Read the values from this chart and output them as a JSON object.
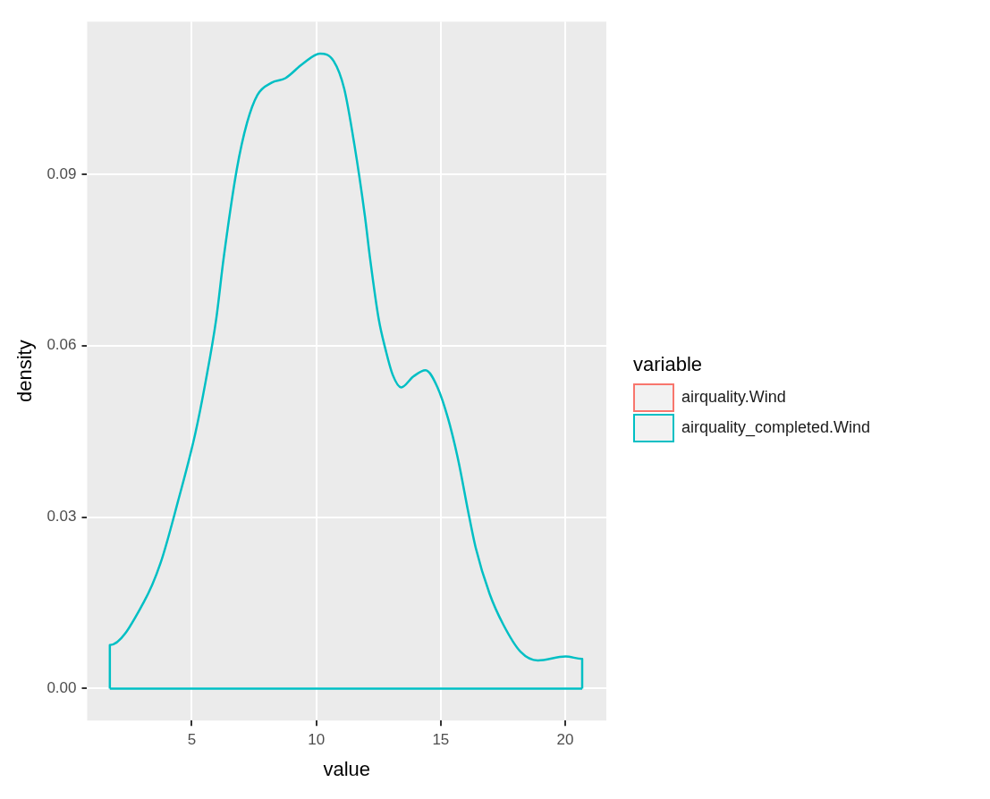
{
  "chart_data": {
    "type": "line",
    "xlabel": "value",
    "ylabel": "density",
    "legend_title": "variable",
    "legend": "right",
    "grid": true,
    "marker": "none",
    "line_style": "solid",
    "xlim": [
      0.8,
      21.65
    ],
    "xticks": [
      5,
      10,
      15,
      20
    ],
    "ylim": [
      -0.0056,
      0.1167
    ],
    "yticks": [
      {
        "value": 0,
        "label": "0.00"
      },
      {
        "value": 0.03,
        "label": "0.03"
      },
      {
        "value": 0.06,
        "label": "0.06"
      },
      {
        "value": 0.09,
        "label": "0.09"
      }
    ],
    "x": [
      1.71,
      1.71,
      3.06,
      3.75,
      4.45,
      5.14,
      5.56,
      5.98,
      6.28,
      6.81,
      7.22,
      7.64,
      8.2,
      8.76,
      9.45,
      10.15,
      10.7,
      11.12,
      11.53,
      11.95,
      12.16,
      12.51,
      12.79,
      13.07,
      13.41,
      13.9,
      14.39,
      14.87,
      15.29,
      15.71,
      16.1,
      16.4,
      16.96,
      17.51,
      18.21,
      18.9,
      20.01,
      20.68,
      20.68
    ],
    "series": [
      {
        "name": "airquality.Wind",
        "color": "#f8766d",
        "values": [
          null,
          null,
          null,
          null,
          null,
          null,
          null,
          null,
          null,
          null,
          null,
          null,
          null,
          null,
          null,
          null,
          null,
          null,
          null,
          null,
          null,
          null,
          null,
          null,
          null,
          null,
          null,
          null,
          null,
          null,
          null,
          null,
          null,
          null,
          null,
          null,
          null,
          null,
          null
        ]
      },
      {
        "name": "airquality_completed.Wind",
        "color": "#00bfc4",
        "values": [
          0,
          0.0076,
          0.015,
          0.022,
          0.0328,
          0.0446,
          0.0538,
          0.0646,
          0.0753,
          0.0909,
          0.099,
          0.1039,
          0.106,
          0.1068,
          0.1093,
          0.1111,
          0.1098,
          0.105,
          0.0952,
          0.0828,
          0.0753,
          0.0646,
          0.0592,
          0.0549,
          0.0527,
          0.0546,
          0.0557,
          0.0527,
          0.0473,
          0.0398,
          0.031,
          0.0247,
          0.0166,
          0.0112,
          0.0064,
          0.0049,
          0.0056,
          0.0052,
          0
        ]
      },
      {
        "color": "#00bfc4",
        "x": [
          1.71,
          20.68
        ],
        "values": [
          0,
          0
        ]
      }
    ]
  }
}
